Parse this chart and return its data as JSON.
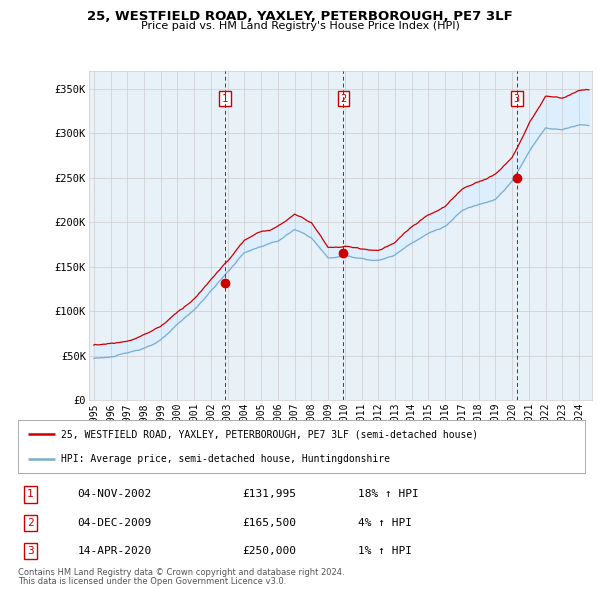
{
  "title": "25, WESTFIELD ROAD, YAXLEY, PETERBOROUGH, PE7 3LF",
  "subtitle": "Price paid vs. HM Land Registry's House Price Index (HPI)",
  "legend_line1": "25, WESTFIELD ROAD, YAXLEY, PETERBOROUGH, PE7 3LF (semi-detached house)",
  "legend_line2": "HPI: Average price, semi-detached house, Huntingdonshire",
  "footer1": "Contains HM Land Registry data © Crown copyright and database right 2024.",
  "footer2": "This data is licensed under the Open Government Licence v3.0.",
  "sale_markers": [
    {
      "num": 1,
      "date": "04-NOV-2002",
      "price": "£131,995",
      "hpi": "18% ↑ HPI",
      "x_year": 2002.84
    },
    {
      "num": 2,
      "date": "04-DEC-2009",
      "price": "£165,500",
      "hpi": "4% ↑ HPI",
      "x_year": 2009.92
    },
    {
      "num": 3,
      "date": "14-APR-2020",
      "price": "£250,000",
      "hpi": "1% ↑ HPI",
      "x_year": 2020.28
    }
  ],
  "sale_prices": [
    131995,
    165500,
    250000
  ],
  "red_line_color": "#cc0000",
  "blue_line_color": "#7aadcc",
  "fill_color": "#ddeeff",
  "marker_box_color": "#cc0000",
  "grid_color": "#cccccc",
  "background_color": "#ffffff",
  "plot_bg_color": "#e8f0f8",
  "ylim": [
    0,
    370000
  ],
  "yticks": [
    0,
    50000,
    100000,
    150000,
    200000,
    250000,
    300000,
    350000
  ],
  "ytick_labels": [
    "£0",
    "£50K",
    "£100K",
    "£150K",
    "£200K",
    "£250K",
    "£300K",
    "£350K"
  ],
  "xlim_start": 1994.7,
  "xlim_end": 2024.75
}
